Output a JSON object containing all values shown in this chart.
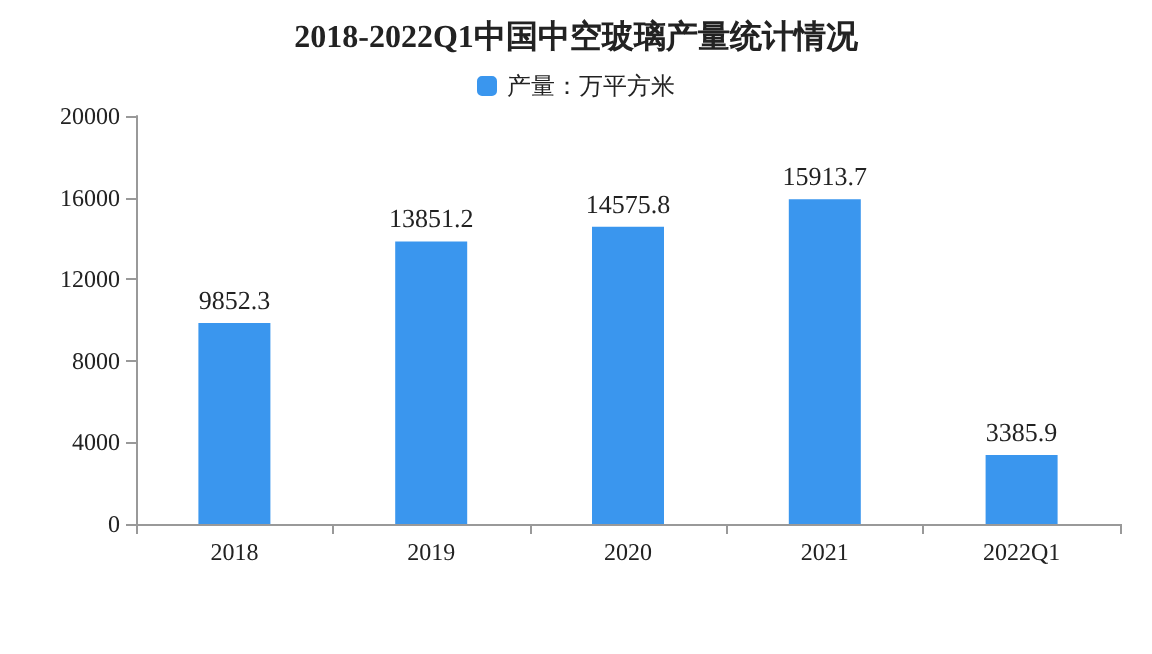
{
  "chart_data": {
    "type": "bar",
    "title": "2018-2022Q1中国中空玻璃产量统计情况",
    "categories": [
      "2018",
      "2019",
      "2020",
      "2021",
      "2022Q1"
    ],
    "series": [
      {
        "name": "产量：万平方米",
        "color": "#3a96ee",
        "values": [
          9852.3,
          13851.2,
          14575.8,
          15913.7,
          3385.9
        ]
      }
    ],
    "ylim": [
      0,
      20000
    ],
    "yticks": [
      0,
      4000,
      8000,
      12000,
      16000,
      20000
    ],
    "grid": false,
    "legend": "top",
    "data_labels": true
  }
}
